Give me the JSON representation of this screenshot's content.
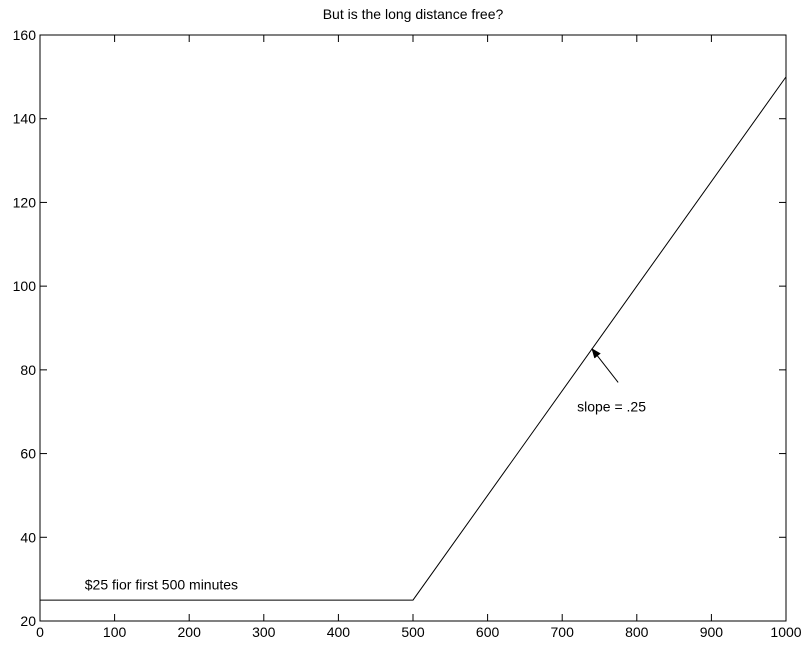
{
  "chart_data": {
    "type": "line",
    "title": "But is the long distance free?",
    "xlabel": "",
    "ylabel": "",
    "xlim": [
      0,
      1000
    ],
    "ylim": [
      20,
      160
    ],
    "xticks": [
      0,
      100,
      200,
      300,
      400,
      500,
      600,
      700,
      800,
      900,
      1000
    ],
    "yticks": [
      20,
      40,
      60,
      80,
      100,
      120,
      140,
      160
    ],
    "grid": false,
    "series": [
      {
        "x": [
          0,
          500,
          1000
        ],
        "y": [
          25,
          25,
          150
        ],
        "color": "#000000"
      }
    ],
    "annotations": [
      {
        "text": "$25 fior first 500 minutes",
        "x": 60,
        "y": 27.5
      },
      {
        "text": "slope = .25",
        "x": 720,
        "y": 70,
        "arrow_to": [
          740,
          85
        ],
        "arrow_from": [
          775,
          77
        ]
      }
    ]
  }
}
